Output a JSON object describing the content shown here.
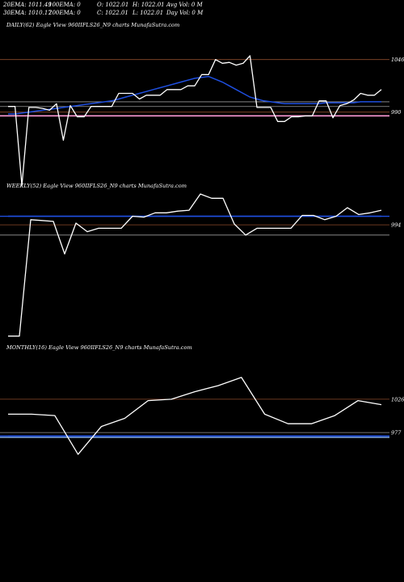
{
  "header": {
    "row1": [
      {
        "label": "20EMA: 1011.49"
      },
      {
        "label": "100EMA: 0"
      },
      {
        "label": "O: 1022.01"
      },
      {
        "label": "H: 1022.01"
      },
      {
        "label": "Avg Vol: 0  M"
      }
    ],
    "row2": [
      {
        "label": "30EMA: 1010.17"
      },
      {
        "label": "200EMA: 0"
      },
      {
        "label": "C: 1022.01"
      },
      {
        "label": "L: 1022.01"
      },
      {
        "label": "Day Vol: 0  M"
      }
    ]
  },
  "colors": {
    "price": "#ffffff",
    "ema": "#1f4fe0",
    "level": "#8b4a2a",
    "support": "#9a9a9a",
    "pink": "#ff9bd6",
    "lightblue": "#8fb8f0"
  },
  "chart_data": [
    {
      "type": "line",
      "title": "DAILY(62) Eagle  View  960IIFLS26_N9 charts MunafaSutra.com",
      "ylim": [
        920,
        1075
      ],
      "y_ticks": [
        {
          "label": "1046",
          "value": 1046
        },
        {
          "label": "990",
          "value": 990
        }
      ],
      "price": [
        996,
        996,
        912,
        995,
        995,
        994,
        992,
        999,
        960,
        997,
        985,
        985,
        996,
        996,
        996,
        996,
        1010,
        1010,
        1010,
        1004,
        1008,
        1008,
        1008,
        1014,
        1014,
        1014,
        1018,
        1018,
        1030,
        1030,
        1046,
        1042,
        1043,
        1040,
        1042,
        1050,
        995,
        995,
        995,
        980,
        980,
        985,
        985,
        986,
        986,
        1002,
        1002,
        984,
        997,
        999,
        1003,
        1010,
        1008,
        1008,
        1014
      ],
      "ema": [
        988,
        988,
        989,
        990,
        991,
        992,
        993,
        994,
        995,
        996,
        997,
        998,
        999,
        1000,
        1001,
        1002,
        1004,
        1006,
        1008,
        1010,
        1012,
        1014,
        1016,
        1018,
        1020,
        1022,
        1024,
        1026,
        1027,
        1028,
        1025,
        1022,
        1018,
        1014,
        1010,
        1006,
        1004,
        1002,
        1001,
        1000,
        999,
        999,
        999,
        999,
        999,
        999,
        1000,
        1000,
        1000,
        1000,
        1000,
        1001,
        1001,
        1001,
        1001
      ],
      "level_lines": [
        {
          "color": "level",
          "value": 1046
        },
        {
          "color": "support",
          "value": 1001
        },
        {
          "color": "support",
          "value": 996
        },
        {
          "color": "level",
          "value": 990
        },
        {
          "color": "pink",
          "value": 986
        }
      ]
    },
    {
      "type": "line",
      "title": "WEEKLY(52) Eagle  View  960IIFLS26_N9 charts MunafaSutra.com",
      "ylim": [
        860,
        1030
      ],
      "y_ticks": [
        {
          "label": "994",
          "value": 994
        }
      ],
      "price": [
        864,
        864,
        1000,
        999,
        998,
        960,
        996,
        986,
        990,
        990,
        990,
        1004,
        1003,
        1008,
        1008,
        1010,
        1011,
        1030,
        1025,
        1025,
        995,
        982,
        990,
        990,
        990,
        990,
        1005,
        1005,
        1000,
        1004,
        1014,
        1006,
        1008,
        1011
      ],
      "ema": [
        1004,
        1004,
        1004,
        1004,
        1004,
        1004,
        1004,
        1004,
        1004,
        1004,
        1004,
        1004,
        1004,
        1004,
        1004,
        1004,
        1004,
        1004,
        1004,
        1004,
        1004,
        1004,
        1004,
        1004,
        1004,
        1004,
        1004,
        1004,
        1004,
        1004,
        1004,
        1004,
        1004,
        1004
      ],
      "level_lines": [
        {
          "color": "level",
          "value": 994
        },
        {
          "color": "support",
          "value": 982
        },
        {
          "color": "ema",
          "value": 1004
        }
      ]
    },
    {
      "type": "line",
      "title": "MONTHLY(16) Eagle  View  960IIFLS26_N9 charts MunafaSutra.com",
      "ylim": [
        900,
        1090
      ],
      "y_ticks": [
        {
          "label": "1026",
          "value": 1026
        },
        {
          "label": "977",
          "value": 977
        }
      ],
      "price": [
        1004,
        1004,
        1002,
        945,
        986,
        998,
        1024,
        1026,
        1037,
        1046,
        1058,
        1004,
        990,
        990,
        1002,
        1024,
        1018
      ],
      "ema": [
        972,
        972,
        972,
        972,
        972,
        972,
        972,
        972,
        972,
        972,
        972,
        972,
        972,
        972,
        972,
        972,
        972
      ],
      "level_lines": [
        {
          "color": "level",
          "value": 1026
        },
        {
          "color": "support",
          "value": 977
        },
        {
          "color": "lightblue",
          "value": 970
        },
        {
          "color": "ema",
          "value": 972
        }
      ]
    }
  ]
}
